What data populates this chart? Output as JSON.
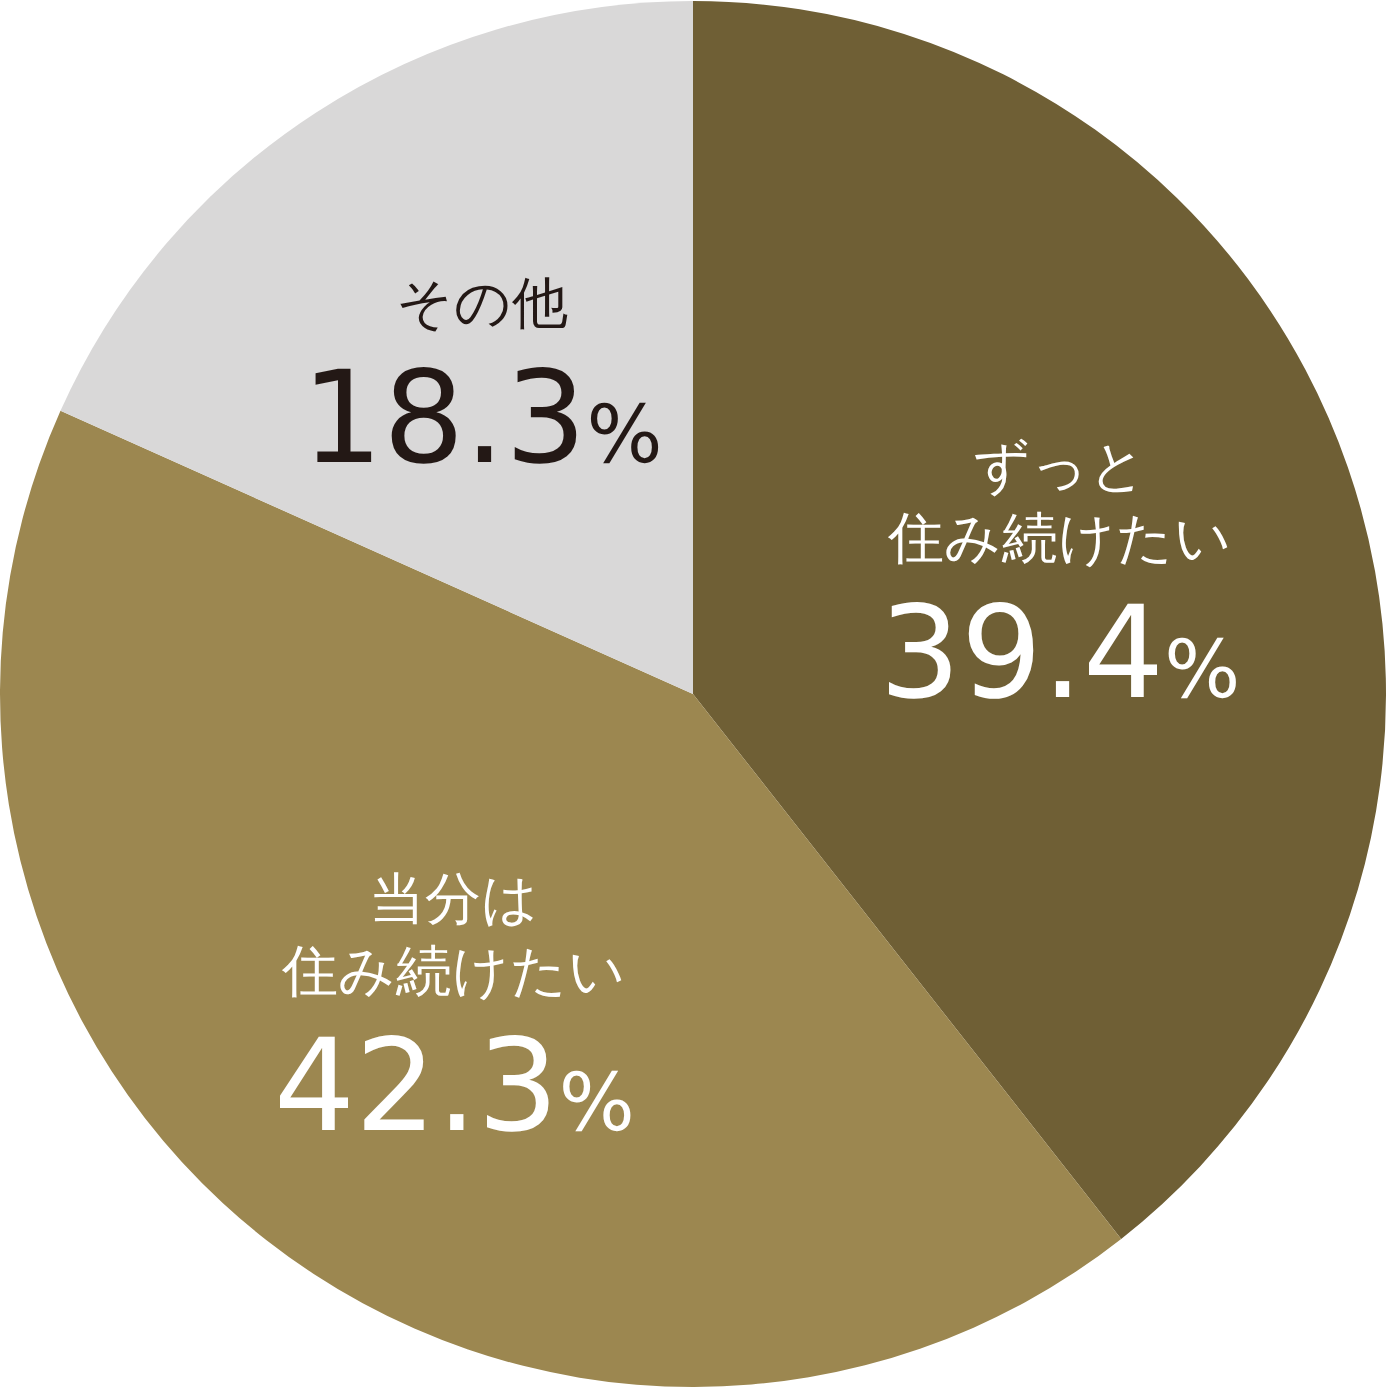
{
  "chart_data": {
    "type": "pie",
    "categories": [
      "ずっと住み続けたい",
      "当分は住み続けたい",
      "その他"
    ],
    "values": [
      39.4,
      42.3,
      18.3
    ],
    "colors": [
      "#6f5f35",
      "#9c8750",
      "#d9d8d8"
    ],
    "value_labels": [
      "39.4%",
      "42.3%",
      "18.3%"
    ],
    "legend": false
  }
}
